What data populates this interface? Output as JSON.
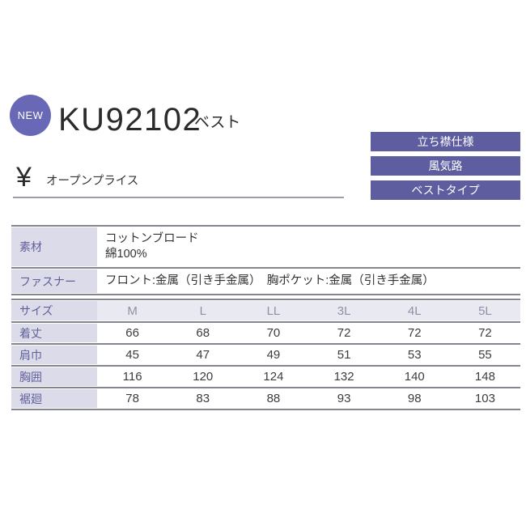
{
  "header": {
    "badge": "NEW",
    "product_code": "KU92102",
    "product_type": "ベスト",
    "features": [
      {
        "label": "立ち襟仕様"
      },
      {
        "label": "風気路"
      },
      {
        "label": "ベストタイプ"
      }
    ]
  },
  "price": {
    "currency_symbol": "¥",
    "label": "オープンプライス"
  },
  "spec_table": {
    "rows": [
      {
        "label": "素材",
        "lines": [
          "コットンブロード",
          "綿100%"
        ]
      },
      {
        "label": "ファスナー",
        "lines": [
          "フロント:金属（引き手金属）　胸ポケット:金属（引き手金属）"
        ]
      }
    ]
  },
  "size_table": {
    "header_label": "サイズ",
    "columns": [
      "M",
      "L",
      "LL",
      "3L",
      "4L",
      "5L"
    ],
    "rows": [
      {
        "label": "着丈",
        "values": [
          66,
          68,
          70,
          72,
          72,
          72
        ]
      },
      {
        "label": "肩巾",
        "values": [
          45,
          47,
          49,
          51,
          53,
          55
        ]
      },
      {
        "label": "胸囲",
        "values": [
          116,
          120,
          124,
          132,
          140,
          148
        ]
      },
      {
        "label": "裾廻",
        "values": [
          78,
          83,
          88,
          93,
          98,
          103
        ]
      }
    ]
  },
  "colors": {
    "badge_purple": "#6868b6",
    "tag_purple": "#5d5da0",
    "table_header_bg": "#dbdbe9",
    "table_header_text": "#60609a",
    "size_header_bg": "#e9e9f2",
    "size_header_text": "#8f8fa9",
    "line_gray": "#85858f",
    "text_dark": "#333333"
  }
}
